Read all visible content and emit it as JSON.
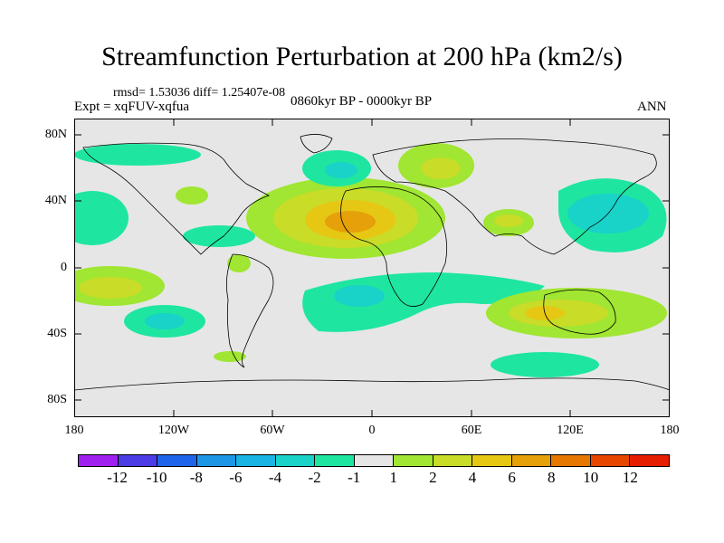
{
  "title": "Streamfunction Perturbation at 200 hPa (km2/s)",
  "stats": "rmsd= 1.53036 diff= 1.25407e-08",
  "expt": "Expt = xqFUV-xqfua",
  "period": "0860kyr BP - 0000kyr BP",
  "season": "ANN",
  "y_ticks": [
    "80N",
    "40N",
    "0",
    "40S",
    "80S"
  ],
  "x_ticks": [
    "180",
    "120W",
    "60W",
    "0",
    "60E",
    "120E",
    "180"
  ],
  "colorbar": {
    "labels": [
      "-12",
      "-10",
      "-8",
      "-6",
      "-4",
      "-2",
      "-1",
      "1",
      "2",
      "4",
      "6",
      "8",
      "10",
      "12"
    ],
    "colors": [
      "#a020f0",
      "#4b3ce6",
      "#1e64eb",
      "#1e96e6",
      "#19b4e1",
      "#19d2c8",
      "#1ee6a0",
      "#e6e6e6",
      "#a0e632",
      "#c8dc28",
      "#e6c814",
      "#e6a00a",
      "#e67800",
      "#e64600",
      "#e61e00"
    ]
  },
  "map": {
    "lon_range": [
      -180,
      180
    ],
    "lat_range": [
      -90,
      90
    ],
    "background_color": "#e6e6e6"
  }
}
